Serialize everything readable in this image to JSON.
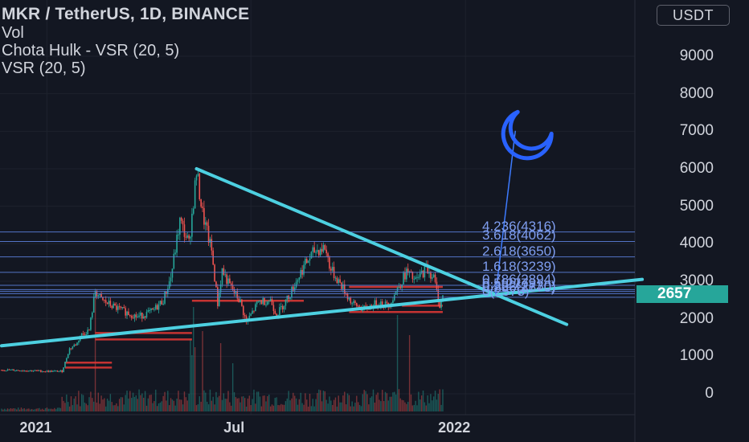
{
  "header": {
    "symbol_title": "MKR / TetherUS, 1D, BINANCE",
    "indicators": [
      "Vol",
      "Chota Hulk - VSR (20, 5)",
      "VSR (20, 5)"
    ],
    "currency": "USDT"
  },
  "last_price": "2657",
  "colors": {
    "background": "#131722",
    "up": "#26a69a",
    "down": "#ef5350",
    "trendline": "#4dd0e1",
    "fib_line": "#5b7fd8",
    "fib_text": "#7f9ef0",
    "support_zone": "#e53935",
    "moon_icon": "#2962ff"
  },
  "icons": [
    "crescent-moon-icon"
  ],
  "chart_data": {
    "type": "candlestick",
    "title": "MKR / TetherUS, 1D, BINANCE",
    "y_axis": {
      "ticks": [
        "0",
        "1000",
        "2000",
        "3000",
        "4000",
        "5000",
        "6000",
        "7000",
        "8000",
        "9000"
      ],
      "ylim": [
        -600,
        10500
      ]
    },
    "x_axis": {
      "ticks": [
        "2021",
        "Jul",
        "2022"
      ]
    },
    "fibonacci_levels": [
      {
        "label": "4.236(4316)",
        "ratio": 4.236,
        "price": 4316
      },
      {
        "label": "3.618(4062)",
        "ratio": 3.618,
        "price": 4062
      },
      {
        "label": "2.618(3650)",
        "ratio": 2.618,
        "price": 3650
      },
      {
        "label": "1.618(3239)",
        "ratio": 1.618,
        "price": 3239
      },
      {
        "label": "0.786(2894)",
        "ratio": 0.786,
        "price": 2894
      },
      {
        "label": "0.5(2779)",
        "ratio": 0.5,
        "price": 2779
      },
      {
        "label": "0.382(2730)",
        "ratio": 0.382,
        "price": 2730
      },
      {
        "label": "0.236(2670)",
        "ratio": 0.236,
        "price": 2670
      },
      {
        "label": "0(2573)",
        "ratio": 0,
        "price": 2573
      }
    ],
    "price_path": [
      [
        0,
        640
      ],
      [
        18,
        620
      ],
      [
        30,
        600
      ],
      [
        40,
        600
      ],
      [
        45,
        1200
      ],
      [
        50,
        1350
      ],
      [
        52,
        1550
      ],
      [
        58,
        1700
      ],
      [
        62,
        2750
      ],
      [
        66,
        2500
      ],
      [
        75,
        2300
      ],
      [
        90,
        2050
      ],
      [
        100,
        2200
      ],
      [
        107,
        2500
      ],
      [
        112,
        3100
      ],
      [
        118,
        4600
      ],
      [
        124,
        4000
      ],
      [
        129,
        5900
      ],
      [
        133,
        4800
      ],
      [
        139,
        3800
      ],
      [
        143,
        2400
      ],
      [
        146,
        3300
      ],
      [
        150,
        2950
      ],
      [
        158,
        2450
      ],
      [
        162,
        1900
      ],
      [
        170,
        2450
      ],
      [
        178,
        2500
      ],
      [
        182,
        2100
      ],
      [
        190,
        2600
      ],
      [
        200,
        3400
      ],
      [
        207,
        3800
      ],
      [
        214,
        3900
      ],
      [
        218,
        3300
      ],
      [
        224,
        2950
      ],
      [
        232,
        2400
      ],
      [
        240,
        2250
      ],
      [
        250,
        2450
      ],
      [
        256,
        2350
      ],
      [
        262,
        2800
      ],
      [
        268,
        3250
      ],
      [
        274,
        3000
      ],
      [
        281,
        3350
      ],
      [
        286,
        3100
      ],
      [
        290,
        2350
      ],
      [
        292,
        2600
      ]
    ],
    "trendlines": [
      {
        "name": "descending resistance",
        "from": [
          129,
          6000
        ],
        "to": [
          374,
          1850
        ]
      },
      {
        "name": "ascending support",
        "from": [
          0,
          1280
        ],
        "to": [
          424,
          3050
        ]
      },
      {
        "name": "projection",
        "from": [
          327,
          2660
        ],
        "to": [
          340,
          7000
        ]
      }
    ],
    "support_zones": [
      {
        "from": 42,
        "to": 73,
        "price": 700
      },
      {
        "from": 42,
        "to": 73,
        "price": 830
      },
      {
        "from": 62,
        "to": 126,
        "price": 1450
      },
      {
        "from": 62,
        "to": 126,
        "price": 1620
      },
      {
        "from": 126,
        "to": 200,
        "price": 2480
      },
      {
        "from": 230,
        "to": 292,
        "price": 2180
      },
      {
        "from": 230,
        "to": 292,
        "price": 2850
      },
      {
        "from": 265,
        "to": 292,
        "price": 2350
      }
    ],
    "grid": true
  }
}
